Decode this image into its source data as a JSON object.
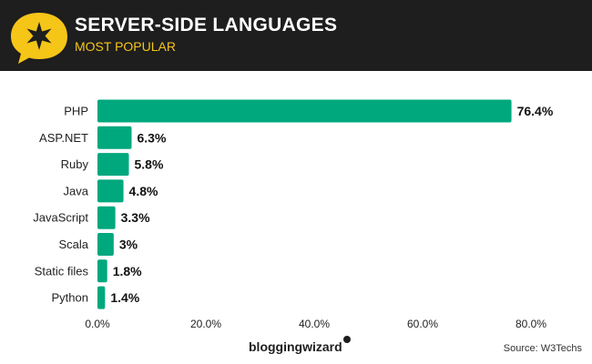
{
  "header": {
    "title": "SERVER-SIDE LANGUAGES",
    "subtitle": "MOST POPULAR",
    "background": "#1e1e1e",
    "title_color": "#ffffff",
    "subtitle_color": "#f5c518",
    "badge_icon": "star-speech-bubble-icon",
    "badge_color": "#f5c518"
  },
  "chart_data": {
    "type": "bar",
    "orientation": "horizontal",
    "categories": [
      "PHP",
      "ASP.NET",
      "Ruby",
      "Java",
      "JavaScript",
      "Scala",
      "Static files",
      "Python"
    ],
    "values": [
      76.4,
      6.3,
      5.8,
      4.8,
      3.3,
      3,
      1.8,
      1.4
    ],
    "value_labels": [
      "76.4%",
      "6.3%",
      "5.8%",
      "4.8%",
      "3.3%",
      "3%",
      "1.8%",
      "1.4%"
    ],
    "xlim": [
      0,
      80
    ],
    "xticks": [
      0,
      20,
      40,
      60,
      80
    ],
    "xtick_labels": [
      "0.0%",
      "20.0%",
      "40.0%",
      "60.0%",
      "80.0%"
    ],
    "bar_color": "#00a87e",
    "grid": false
  },
  "footer": {
    "brand": "bloggingwizard",
    "source": "Source: W3Techs"
  }
}
